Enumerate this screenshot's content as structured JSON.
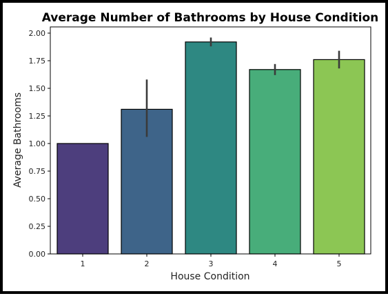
{
  "chart_data": {
    "type": "bar",
    "title": "Average Number of Bathrooms by House Condition",
    "xlabel": "House Condition",
    "ylabel": "Average Bathrooms",
    "categories": [
      "1",
      "2",
      "3",
      "4",
      "5"
    ],
    "values": [
      1.0,
      1.31,
      1.92,
      1.67,
      1.76
    ],
    "error_low": [
      1.0,
      1.06,
      1.88,
      1.62,
      1.68
    ],
    "error_high": [
      1.0,
      1.58,
      1.96,
      1.72,
      1.84
    ],
    "ylim": [
      0,
      2.0
    ],
    "yticks": [
      "0.00",
      "0.25",
      "0.50",
      "0.75",
      "1.00",
      "1.25",
      "1.50",
      "1.75",
      "2.00"
    ],
    "ytick_values": [
      0,
      0.25,
      0.5,
      0.75,
      1.0,
      1.25,
      1.5,
      1.75,
      2.0
    ],
    "colors": [
      "#4d3e7d",
      "#3e6489",
      "#2e8882",
      "#48ad7a",
      "#8cc654"
    ],
    "grid": false,
    "legend": "none"
  }
}
